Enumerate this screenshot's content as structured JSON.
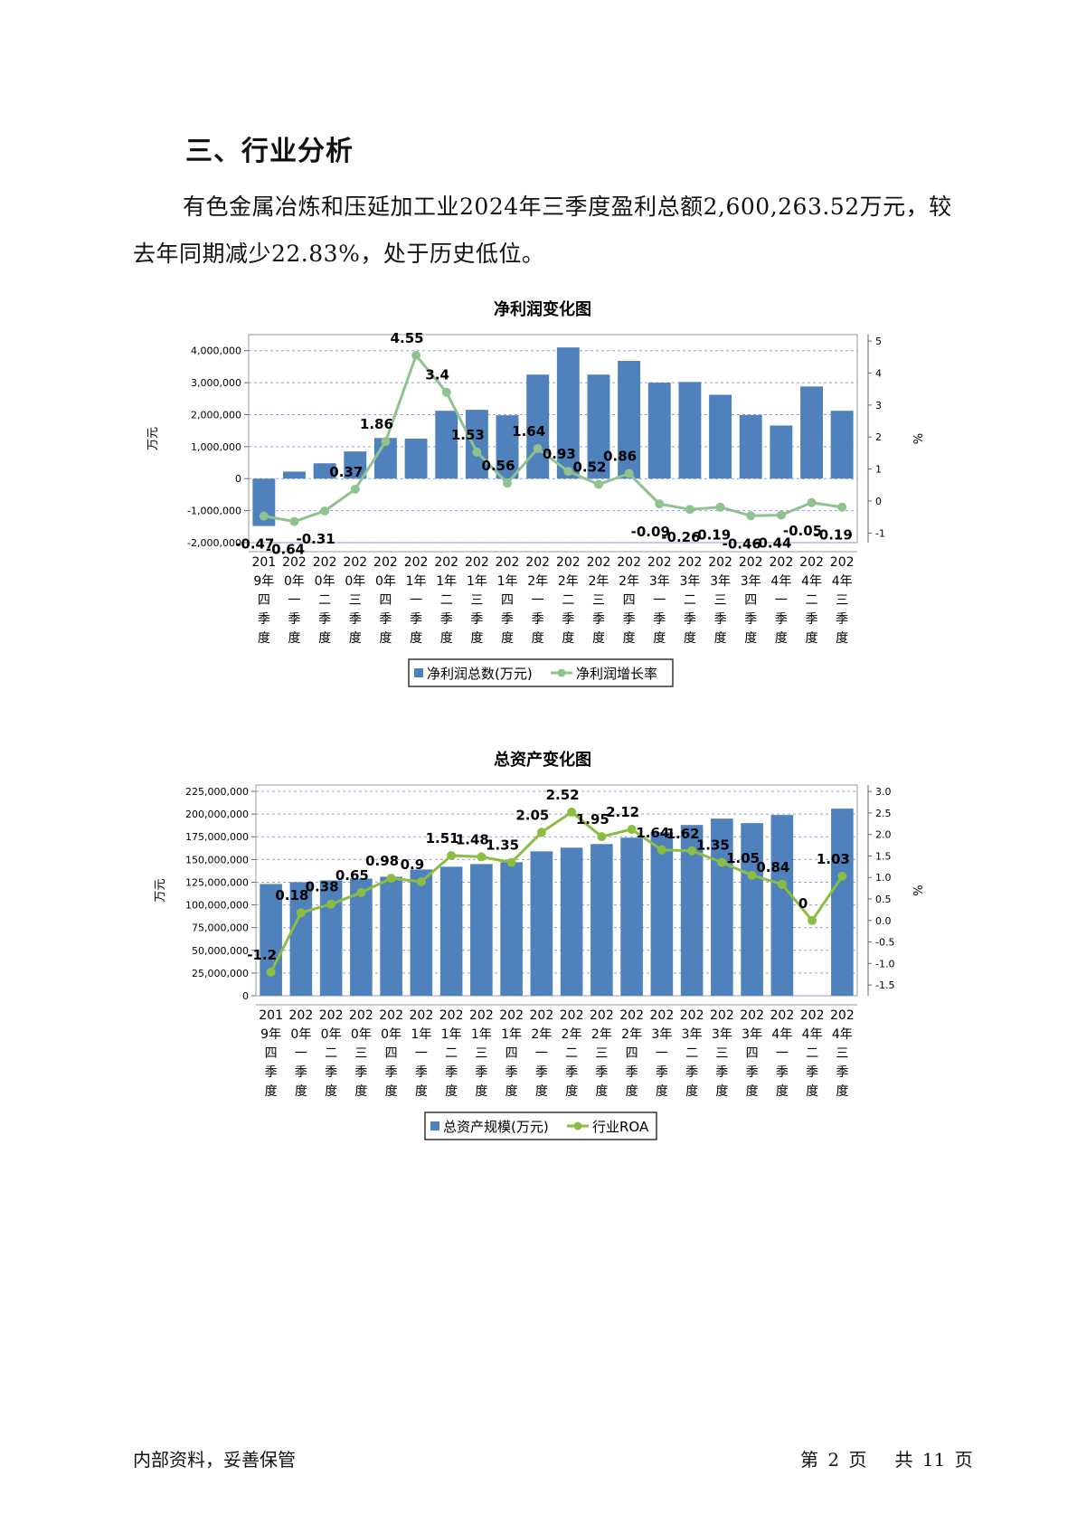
{
  "heading": "三、行业分析",
  "paragraph": "有色金属冶炼和压延加工业2024年三季度盈利总额2,600,263.52万元，较去年同期减少22.83%，处于历史低位。",
  "footer": {
    "left": "内部资料，妥善保管",
    "page_prefix": "第",
    "page_num": "2",
    "page_mid": "页",
    "total_prefix": "共",
    "total_num": "11",
    "total_suffix": "页"
  },
  "colors": {
    "bar": "#4f81bd",
    "line1": "#8fc28e",
    "line2": "#8cbd43",
    "grid": "#9999ee"
  },
  "chart_data": [
    {
      "type": "bar+line",
      "title": "净利润变化图",
      "ylabel": "万元",
      "y2label": "%",
      "categories": [
        [
          "201",
          "9年",
          "四",
          "季",
          "度"
        ],
        [
          "202",
          "0年",
          "一",
          "季",
          "度"
        ],
        [
          "202",
          "0年",
          "二",
          "季",
          "度"
        ],
        [
          "202",
          "0年",
          "三",
          "季",
          "度"
        ],
        [
          "202",
          "0年",
          "四",
          "季",
          "度"
        ],
        [
          "202",
          "1年",
          "一",
          "季",
          "度"
        ],
        [
          "202",
          "1年",
          "二",
          "季",
          "度"
        ],
        [
          "202",
          "1年",
          "三",
          "季",
          "度"
        ],
        [
          "202",
          "1年",
          "四",
          "季",
          "度"
        ],
        [
          "202",
          "2年",
          "一",
          "季",
          "度"
        ],
        [
          "202",
          "2年",
          "二",
          "季",
          "度"
        ],
        [
          "202",
          "2年",
          "三",
          "季",
          "度"
        ],
        [
          "202",
          "2年",
          "四",
          "季",
          "度"
        ],
        [
          "202",
          "3年",
          "一",
          "季",
          "度"
        ],
        [
          "202",
          "3年",
          "二",
          "季",
          "度"
        ],
        [
          "202",
          "3年",
          "三",
          "季",
          "度"
        ],
        [
          "202",
          "3年",
          "四",
          "季",
          "度"
        ],
        [
          "202",
          "4年",
          "一",
          "季",
          "度"
        ],
        [
          "202",
          "4年",
          "二",
          "季",
          "度"
        ],
        [
          "202",
          "4年",
          "三",
          "季",
          "度"
        ]
      ],
      "ylim": [
        -2000000,
        4500000
      ],
      "yticks": [
        -2000000,
        -1000000,
        0,
        1000000,
        2000000,
        3000000,
        4000000
      ],
      "ytick_labels": [
        "-2,000,000",
        "-1,000,000",
        "0",
        "1,000,000",
        "2,000,000",
        "3,000,000",
        "4,000,000"
      ],
      "y2lim": [
        -1.3,
        5.2
      ],
      "y2ticks": [
        -1,
        0,
        1,
        2,
        3,
        4,
        5
      ],
      "y2tick_labels": [
        "-1",
        "0",
        "1",
        "2",
        "3",
        "4",
        "5"
      ],
      "series": [
        {
          "name": "净利润总数(万元)",
          "kind": "bar",
          "values": [
            -1480000,
            220000,
            480000,
            850000,
            1270000,
            1250000,
            2120000,
            2150000,
            1980000,
            3250000,
            4100000,
            3250000,
            3680000,
            3000000,
            3020000,
            2620000,
            1990000,
            1660000,
            2880000,
            2120000
          ]
        },
        {
          "name": "净利润增长率",
          "kind": "line",
          "values": [
            -0.47,
            -0.64,
            -0.31,
            0.37,
            1.86,
            4.55,
            3.4,
            1.53,
            0.56,
            1.64,
            0.93,
            0.52,
            0.86,
            -0.09,
            -0.26,
            -0.19,
            -0.46,
            -0.44,
            -0.05,
            -0.19
          ],
          "labels": [
            "-0.47",
            "-0.64",
            "-0.31",
            "0.37",
            "1.86",
            "4.55",
            "3.4",
            "1.53",
            "0.56",
            "1.64",
            "0.93",
            "0.52",
            "0.86",
            "-0.09",
            "-0.26",
            "-0.19",
            "-0.46",
            "-0.44",
            "-0.05",
            "-0.19"
          ]
        }
      ],
      "legend": "bottom"
    },
    {
      "type": "bar+line",
      "title": "总资产变化图",
      "ylabel": "万元",
      "y2label": "%",
      "categories": [
        [
          "201",
          "9年",
          "四",
          "季",
          "度"
        ],
        [
          "202",
          "0年",
          "一",
          "季",
          "度"
        ],
        [
          "202",
          "0年",
          "二",
          "季",
          "度"
        ],
        [
          "202",
          "0年",
          "三",
          "季",
          "度"
        ],
        [
          "202",
          "0年",
          "四",
          "季",
          "度"
        ],
        [
          "202",
          "1年",
          "一",
          "季",
          "度"
        ],
        [
          "202",
          "1年",
          "二",
          "季",
          "度"
        ],
        [
          "202",
          "1年",
          "三",
          "季",
          "度"
        ],
        [
          "202",
          "1年",
          "四",
          "季",
          "度"
        ],
        [
          "202",
          "2年",
          "一",
          "季",
          "度"
        ],
        [
          "202",
          "2年",
          "二",
          "季",
          "度"
        ],
        [
          "202",
          "2年",
          "三",
          "季",
          "度"
        ],
        [
          "202",
          "2年",
          "四",
          "季",
          "度"
        ],
        [
          "202",
          "3年",
          "一",
          "季",
          "度"
        ],
        [
          "202",
          "3年",
          "二",
          "季",
          "度"
        ],
        [
          "202",
          "3年",
          "三",
          "季",
          "度"
        ],
        [
          "202",
          "3年",
          "四",
          "季",
          "度"
        ],
        [
          "202",
          "4年",
          "一",
          "季",
          "度"
        ],
        [
          "202",
          "4年",
          "二",
          "季",
          "度"
        ],
        [
          "202",
          "4年",
          "三",
          "季",
          "度"
        ]
      ],
      "ylim": [
        0,
        232000000
      ],
      "yticks": [
        0,
        25000000,
        50000000,
        75000000,
        100000000,
        125000000,
        150000000,
        175000000,
        200000000,
        225000000
      ],
      "ytick_labels": [
        "0",
        "25,000,000",
        "50,000,000",
        "75,000,000",
        "100,000,000",
        "125,000,000",
        "150,000,000",
        "175,000,000",
        "200,000,000",
        "225,000,000"
      ],
      "y2lim": [
        -1.75,
        3.15
      ],
      "y2ticks": [
        -1.5,
        -1.0,
        -0.5,
        0.0,
        0.5,
        1.0,
        1.5,
        2.0,
        2.5,
        3.0
      ],
      "y2tick_labels": [
        "-1.5",
        "-1.0",
        "-0.5",
        "0.0",
        "0.5",
        "1.0",
        "1.5",
        "2.0",
        "2.5",
        "3.0"
      ],
      "series": [
        {
          "name": "总资产规模(万元)",
          "kind": "bar",
          "values": [
            123000000,
            125000000,
            127000000,
            129000000,
            131000000,
            139000000,
            142000000,
            145000000,
            147000000,
            159000000,
            163000000,
            167000000,
            174000000,
            180000000,
            188000000,
            195000000,
            190000000,
            199000000,
            0,
            206000000
          ]
        },
        {
          "name": "行业ROA",
          "kind": "line",
          "values": [
            -1.2,
            0.18,
            0.38,
            0.65,
            0.98,
            0.9,
            1.51,
            1.48,
            1.35,
            2.05,
            2.52,
            1.95,
            2.12,
            1.64,
            1.62,
            1.35,
            1.05,
            0.84,
            0,
            1.03
          ],
          "labels": [
            "-1.2",
            "0.18",
            "0.38",
            "0.65",
            "0.98",
            "0.9",
            "1.51",
            "1.48",
            "1.35",
            "2.05",
            "2.52",
            "1.95",
            "2.12",
            "1.64",
            "1.62",
            "1.35",
            "1.05",
            "0.84",
            "0",
            "1.03"
          ]
        }
      ],
      "legend": "bottom"
    }
  ]
}
